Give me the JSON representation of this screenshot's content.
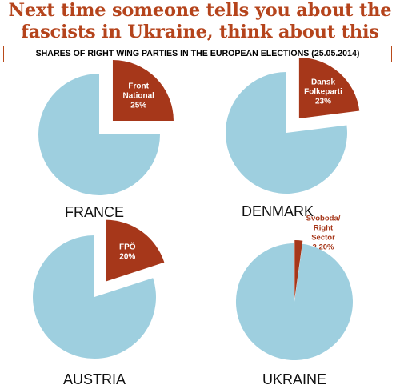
{
  "header": {
    "headline_line1": "Next time someone tells you about the",
    "headline_line2": "fascists in Ukraine, think about this",
    "subtitle": "SHARES OF RIGHT WING PARTIES IN THE EUROPEAN ELECTIONS (25.05.2014)"
  },
  "colors": {
    "headline": "#b5441c",
    "pie_rest": "#9ecfdf",
    "pie_slice": "#a6371a",
    "subtitle_border": "#b94a1a"
  },
  "chart_data": [
    {
      "type": "pie",
      "title": "FRANCE",
      "slices": [
        {
          "label_lines": [
            "Front",
            "National",
            "25%"
          ],
          "value": 25,
          "exploded": true
        },
        {
          "label_lines": [],
          "value": 75,
          "exploded": false
        }
      ]
    },
    {
      "type": "pie",
      "title": "DENMARK",
      "slices": [
        {
          "label_lines": [
            "Dansk",
            "Folkeparti",
            "23%"
          ],
          "value": 23,
          "exploded": true
        },
        {
          "label_lines": [],
          "value": 77,
          "exploded": false
        }
      ]
    },
    {
      "type": "pie",
      "title": "AUSTRIA",
      "slices": [
        {
          "label_lines": [
            "FPÖ",
            "20%"
          ],
          "value": 20,
          "exploded": true
        },
        {
          "label_lines": [],
          "value": 80,
          "exploded": false
        }
      ]
    },
    {
      "type": "pie",
      "title": "UKRAINE",
      "slices": [
        {
          "label_lines": [
            "Svoboda/",
            "Right",
            "Sector",
            "2,20%"
          ],
          "value": 2.2,
          "exploded": true
        },
        {
          "label_lines": [],
          "value": 97.8,
          "exploded": false
        }
      ]
    }
  ]
}
